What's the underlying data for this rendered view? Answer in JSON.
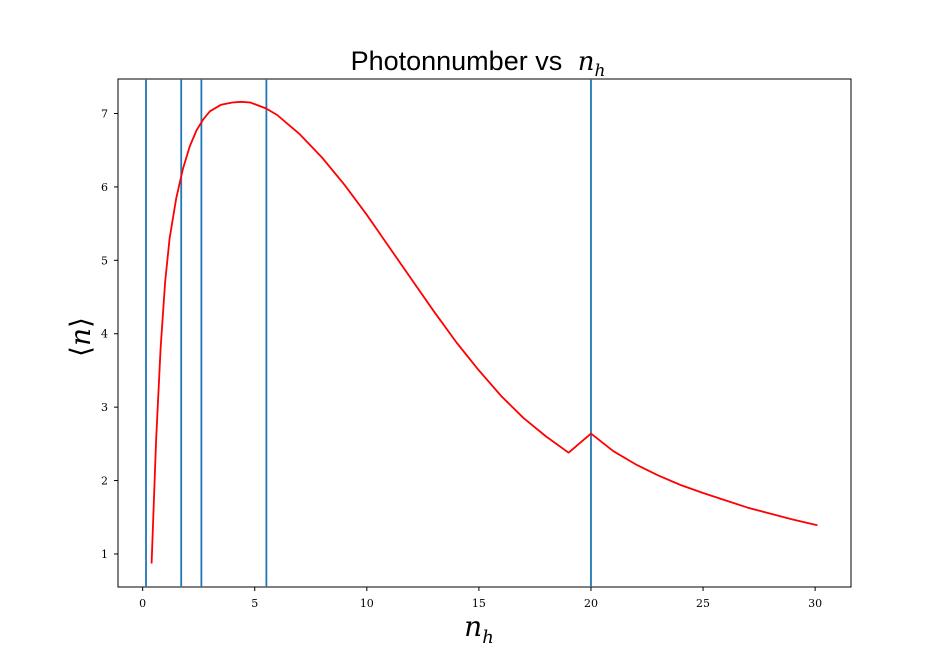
{
  "chart_data": {
    "type": "line",
    "title": "Photonnumber vs",
    "title_math": {
      "base": "n",
      "sub": "h"
    },
    "xlabel": {
      "base": "n",
      "sub": "h"
    },
    "ylabel": {
      "open": "⟨",
      "base": "n",
      "close": "⟩"
    },
    "xlim": [
      -1.1,
      31.6
    ],
    "ylim": [
      0.55,
      7.47
    ],
    "x_ticks": [
      0,
      5,
      10,
      15,
      20,
      25,
      30
    ],
    "y_ticks": [
      1,
      2,
      3,
      4,
      5,
      6,
      7
    ],
    "grid": false,
    "series": [
      {
        "color": "#ff0000",
        "x": [
          0.4,
          0.6,
          0.8,
          1.0,
          1.2,
          1.5,
          1.8,
          2.1,
          2.4,
          2.7,
          3.0,
          3.5,
          4.0,
          4.4,
          4.8,
          5.5,
          6.0,
          7.0,
          8.0,
          9.0,
          10.0,
          11.0,
          12.0,
          13.0,
          14.0,
          15.0,
          16.0,
          17.0,
          18.0,
          19.0,
          20.0,
          21.0,
          22.0,
          23.0,
          24.0,
          25.0,
          26.0,
          27.0,
          28.0,
          29.0,
          30.1
        ],
        "y": [
          0.87,
          2.55,
          3.8,
          4.7,
          5.3,
          5.85,
          6.25,
          6.55,
          6.77,
          6.92,
          7.03,
          7.12,
          7.15,
          7.16,
          7.15,
          7.07,
          6.98,
          6.72,
          6.4,
          6.03,
          5.62,
          5.18,
          4.74,
          4.3,
          3.88,
          3.5,
          3.15,
          2.85,
          2.6,
          2.38,
          2.64,
          2.4,
          2.22,
          2.07,
          1.94,
          1.83,
          1.73,
          1.63,
          1.55,
          1.47,
          1.39
        ]
      }
    ],
    "vlines": {
      "color": "#1f77b4",
      "x": [
        0.15,
        1.72,
        2.62,
        5.52,
        20.0
      ]
    }
  }
}
